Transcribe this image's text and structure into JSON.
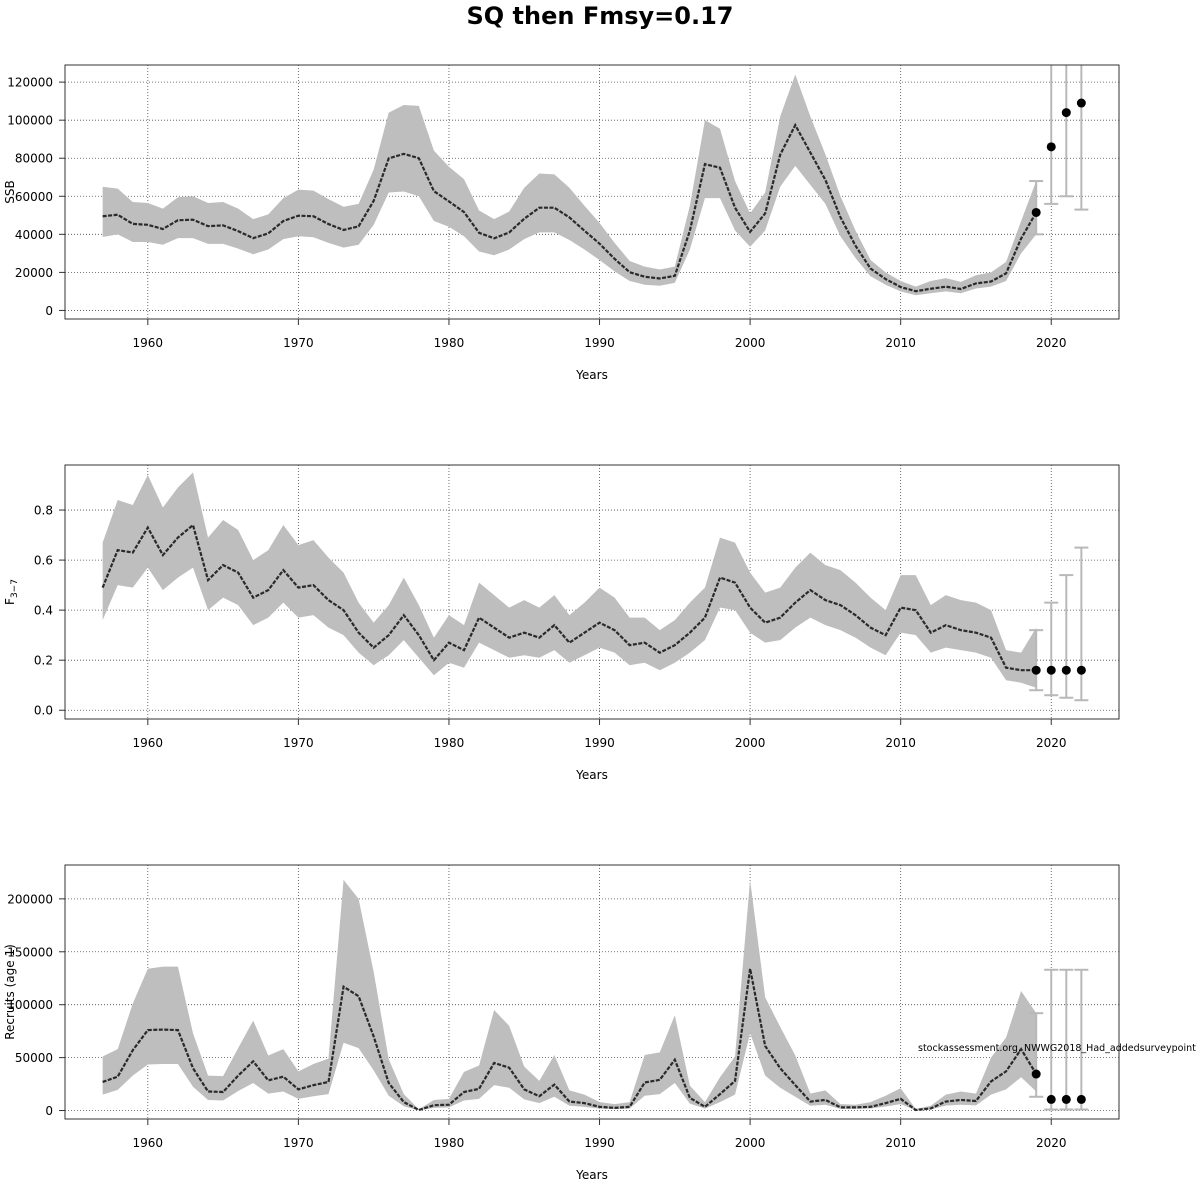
{
  "title": "SQ then Fmsy=0.17",
  "colors": {
    "band": "#bebebe",
    "line": "#000000",
    "projection_bar": "#b8b8b8",
    "grid": "#4d4d4d"
  },
  "chart_data": [
    {
      "id": "ssb",
      "type": "line",
      "xlabel": "Years",
      "ylabel": "SSB",
      "xlim": [
        1954.5,
        2024.5
      ],
      "ylim": [
        -4500,
        129000
      ],
      "xticks": [
        1960,
        1970,
        1980,
        1990,
        2000,
        2010,
        2020
      ],
      "yticks": [
        0,
        20000,
        40000,
        60000,
        80000,
        100000,
        120000
      ],
      "grid": true,
      "years": [
        1957,
        1958,
        1959,
        1960,
        1961,
        1962,
        1963,
        1964,
        1965,
        1966,
        1967,
        1968,
        1969,
        1970,
        1971,
        1972,
        1973,
        1974,
        1975,
        1976,
        1977,
        1978,
        1979,
        1980,
        1981,
        1982,
        1983,
        1984,
        1985,
        1986,
        1987,
        1988,
        1989,
        1990,
        1991,
        1992,
        1993,
        1994,
        1995,
        1996,
        1997,
        1998,
        1999,
        2000,
        2001,
        2002,
        2003,
        2004,
        2005,
        2006,
        2007,
        2008,
        2009,
        2010,
        2011,
        2012,
        2013,
        2014,
        2015,
        2016,
        2017,
        2018,
        2019
      ],
      "estimate": [
        49500,
        50300,
        45500,
        45000,
        42800,
        47400,
        47700,
        44300,
        44700,
        41700,
        38000,
        40500,
        47000,
        49800,
        49500,
        45400,
        42300,
        44200,
        57600,
        79900,
        82300,
        80000,
        62700,
        57300,
        51700,
        40800,
        37900,
        41000,
        48200,
        54000,
        54000,
        48900,
        41900,
        35100,
        27100,
        20100,
        17700,
        16800,
        18200,
        41900,
        76900,
        75000,
        54000,
        41300,
        51000,
        81900,
        97400,
        83000,
        68600,
        49000,
        34000,
        22000,
        16500,
        12300,
        10100,
        11400,
        12500,
        11300,
        14200,
        15200,
        19500,
        37800,
        51500
      ],
      "lower": [
        38600,
        40000,
        36000,
        36000,
        34500,
        38000,
        38000,
        35000,
        35000,
        32500,
        29500,
        32000,
        37500,
        39000,
        38500,
        35500,
        33000,
        34500,
        45000,
        62000,
        62500,
        60000,
        47000,
        44000,
        39000,
        31000,
        29000,
        32000,
        37500,
        41000,
        41000,
        37000,
        32000,
        26500,
        20500,
        15500,
        13500,
        13000,
        14500,
        32000,
        59000,
        59000,
        42000,
        33500,
        42000,
        65000,
        76000,
        66000,
        56000,
        39000,
        27500,
        18000,
        13500,
        10000,
        8000,
        9000,
        10000,
        9000,
        11500,
        12500,
        15500,
        30000,
        40000
      ],
      "upper": [
        65000,
        64000,
        57000,
        56500,
        53500,
        59500,
        60000,
        56500,
        57000,
        53500,
        48000,
        50500,
        59000,
        63500,
        63000,
        58500,
        54500,
        56000,
        74000,
        104000,
        108000,
        107500,
        84000,
        75500,
        69000,
        52500,
        48000,
        52000,
        64500,
        72000,
        71500,
        64500,
        55000,
        46000,
        35500,
        26000,
        23000,
        21500,
        23000,
        55000,
        100000,
        95500,
        68000,
        51000,
        62000,
        102000,
        124000,
        102000,
        82000,
        60000,
        42000,
        26500,
        20000,
        15500,
        12500,
        15500,
        17000,
        15000,
        18500,
        20000,
        25500,
        47000,
        68000
      ],
      "projection": {
        "years": [
          2019,
          2020,
          2021,
          2022
        ],
        "median": [
          51500,
          86000,
          104000,
          109000
        ],
        "lower": [
          40000,
          56000,
          60000,
          53000
        ],
        "upper": [
          68000,
          131000,
          131000,
          131000
        ]
      }
    },
    {
      "id": "f",
      "type": "line",
      "xlabel": "Years",
      "ylabel": "F3–7",
      "ylabel_main": "F",
      "ylabel_sub": "3−7",
      "xlim": [
        1954.5,
        2024.5
      ],
      "ylim": [
        -0.035,
        0.98
      ],
      "xticks": [
        1960,
        1970,
        1980,
        1990,
        2000,
        2010,
        2020
      ],
      "yticks": [
        0.0,
        0.2,
        0.4,
        0.6,
        0.8
      ],
      "ytick_labels": [
        "0.0",
        "0.2",
        "0.4",
        "0.6",
        "0.8"
      ],
      "grid": true,
      "years": [
        1957,
        1958,
        1959,
        1960,
        1961,
        1962,
        1963,
        1964,
        1965,
        1966,
        1967,
        1968,
        1969,
        1970,
        1971,
        1972,
        1973,
        1974,
        1975,
        1976,
        1977,
        1978,
        1979,
        1980,
        1981,
        1982,
        1983,
        1984,
        1985,
        1986,
        1987,
        1988,
        1989,
        1990,
        1991,
        1992,
        1993,
        1994,
        1995,
        1996,
        1997,
        1998,
        1999,
        2000,
        2001,
        2002,
        2003,
        2004,
        2005,
        2006,
        2007,
        2008,
        2009,
        2010,
        2011,
        2012,
        2013,
        2014,
        2015,
        2016,
        2017,
        2018,
        2019
      ],
      "estimate": [
        0.49,
        0.64,
        0.63,
        0.73,
        0.62,
        0.69,
        0.74,
        0.52,
        0.58,
        0.55,
        0.45,
        0.48,
        0.56,
        0.49,
        0.5,
        0.44,
        0.4,
        0.31,
        0.25,
        0.3,
        0.38,
        0.3,
        0.2,
        0.27,
        0.24,
        0.37,
        0.33,
        0.29,
        0.31,
        0.29,
        0.34,
        0.27,
        0.31,
        0.35,
        0.32,
        0.26,
        0.27,
        0.23,
        0.26,
        0.31,
        0.37,
        0.53,
        0.51,
        0.41,
        0.35,
        0.37,
        0.43,
        0.48,
        0.44,
        0.42,
        0.38,
        0.33,
        0.3,
        0.41,
        0.4,
        0.31,
        0.34,
        0.32,
        0.31,
        0.29,
        0.17,
        0.16,
        0.16
      ],
      "lower": [
        0.36,
        0.5,
        0.49,
        0.57,
        0.48,
        0.53,
        0.57,
        0.4,
        0.45,
        0.42,
        0.34,
        0.37,
        0.43,
        0.37,
        0.38,
        0.33,
        0.3,
        0.23,
        0.18,
        0.22,
        0.28,
        0.21,
        0.14,
        0.19,
        0.17,
        0.27,
        0.24,
        0.21,
        0.22,
        0.21,
        0.24,
        0.19,
        0.22,
        0.25,
        0.23,
        0.18,
        0.19,
        0.16,
        0.19,
        0.23,
        0.28,
        0.41,
        0.4,
        0.31,
        0.27,
        0.28,
        0.33,
        0.37,
        0.34,
        0.32,
        0.29,
        0.25,
        0.22,
        0.31,
        0.3,
        0.23,
        0.25,
        0.24,
        0.23,
        0.21,
        0.12,
        0.11,
        0.09
      ],
      "upper": [
        0.67,
        0.84,
        0.82,
        0.94,
        0.81,
        0.89,
        0.95,
        0.69,
        0.76,
        0.72,
        0.6,
        0.64,
        0.74,
        0.66,
        0.68,
        0.61,
        0.55,
        0.43,
        0.35,
        0.42,
        0.53,
        0.42,
        0.29,
        0.38,
        0.34,
        0.51,
        0.46,
        0.41,
        0.44,
        0.41,
        0.46,
        0.38,
        0.43,
        0.49,
        0.45,
        0.37,
        0.37,
        0.32,
        0.36,
        0.43,
        0.49,
        0.69,
        0.67,
        0.55,
        0.47,
        0.49,
        0.57,
        0.63,
        0.58,
        0.56,
        0.51,
        0.45,
        0.4,
        0.54,
        0.54,
        0.42,
        0.46,
        0.44,
        0.43,
        0.4,
        0.24,
        0.23,
        0.33
      ],
      "projection": {
        "years": [
          2019,
          2020,
          2021,
          2022
        ],
        "median": [
          0.16,
          0.16,
          0.16,
          0.16
        ],
        "lower": [
          0.08,
          0.06,
          0.05,
          0.04
        ],
        "upper": [
          0.32,
          0.43,
          0.54,
          0.65
        ]
      }
    },
    {
      "id": "rec",
      "type": "line",
      "xlabel": "Years",
      "ylabel": "Recruits (age 1)",
      "xlim": [
        1954.5,
        2024.5
      ],
      "ylim": [
        -8000,
        232000
      ],
      "xticks": [
        1960,
        1970,
        1980,
        1990,
        2000,
        2010,
        2020
      ],
      "yticks": [
        0,
        50000,
        100000,
        150000,
        200000
      ],
      "grid": true,
      "annotation": "stockassessment.org, NWWG2018_Had_addedsurveypoint",
      "years": [
        1957,
        1958,
        1959,
        1960,
        1961,
        1962,
        1963,
        1964,
        1965,
        1966,
        1967,
        1968,
        1969,
        1970,
        1971,
        1972,
        1973,
        1974,
        1975,
        1976,
        1977,
        1978,
        1979,
        1980,
        1981,
        1982,
        1983,
        1984,
        1985,
        1986,
        1987,
        1988,
        1989,
        1990,
        1991,
        1992,
        1993,
        1994,
        1995,
        1996,
        1997,
        1998,
        1999,
        2000,
        2001,
        2002,
        2003,
        2004,
        2005,
        2006,
        2007,
        2008,
        2009,
        2010,
        2011,
        2012,
        2013,
        2014,
        2015,
        2016,
        2017,
        2018,
        2019
      ],
      "estimate": [
        27000,
        32000,
        57000,
        76000,
        76500,
        76000,
        40000,
        18000,
        17500,
        33000,
        46500,
        28500,
        32000,
        20000,
        24000,
        27000,
        117000,
        108000,
        70000,
        26000,
        8000,
        500,
        5000,
        5500,
        17500,
        20500,
        45000,
        40500,
        20000,
        13500,
        24500,
        8500,
        7000,
        3500,
        2500,
        3500,
        26500,
        29000,
        48000,
        12000,
        3500,
        15500,
        28000,
        134000,
        61000,
        40000,
        24000,
        8500,
        10000,
        3000,
        3000,
        3500,
        7000,
        11000,
        500,
        2000,
        8500,
        10000,
        9000,
        27500,
        37000,
        58000,
        34500
      ],
      "lower": [
        15000,
        19500,
        33000,
        43500,
        44000,
        44000,
        22500,
        10000,
        9500,
        18500,
        26000,
        16000,
        18000,
        11000,
        13500,
        15500,
        64000,
        59000,
        38000,
        14000,
        4000,
        200,
        2500,
        3000,
        9500,
        11000,
        24000,
        21500,
        10500,
        7000,
        13000,
        4500,
        3500,
        1800,
        1300,
        1800,
        14000,
        15500,
        26000,
        6500,
        1800,
        8000,
        15000,
        73000,
        33000,
        21500,
        13000,
        4500,
        5500,
        1600,
        1600,
        1900,
        3800,
        6000,
        250,
        1100,
        4600,
        5500,
        4900,
        15000,
        20000,
        31500,
        18000
      ],
      "upper": [
        51000,
        58000,
        101000,
        134000,
        136000,
        136000,
        73000,
        33000,
        32500,
        59000,
        85000,
        52000,
        58000,
        37000,
        44000,
        49000,
        218000,
        200000,
        131000,
        48500,
        15500,
        1200,
        10000,
        11000,
        36500,
        42500,
        95000,
        80000,
        41500,
        28000,
        52500,
        19000,
        15000,
        8000,
        6000,
        8000,
        52500,
        55000,
        90000,
        23500,
        8000,
        31500,
        51000,
        218000,
        107000,
        79000,
        52000,
        16000,
        19000,
        6000,
        5500,
        8000,
        14000,
        21000,
        1500,
        4500,
        15000,
        18000,
        16000,
        50000,
        69000,
        113000,
        92000
      ],
      "projection": {
        "years": [
          2019,
          2020,
          2021,
          2022
        ],
        "median": [
          34500,
          10500,
          10500,
          10500
        ],
        "lower": [
          13000,
          1000,
          1000,
          1000
        ],
        "upper": [
          92000,
          133000,
          133000,
          133000
        ]
      }
    }
  ]
}
